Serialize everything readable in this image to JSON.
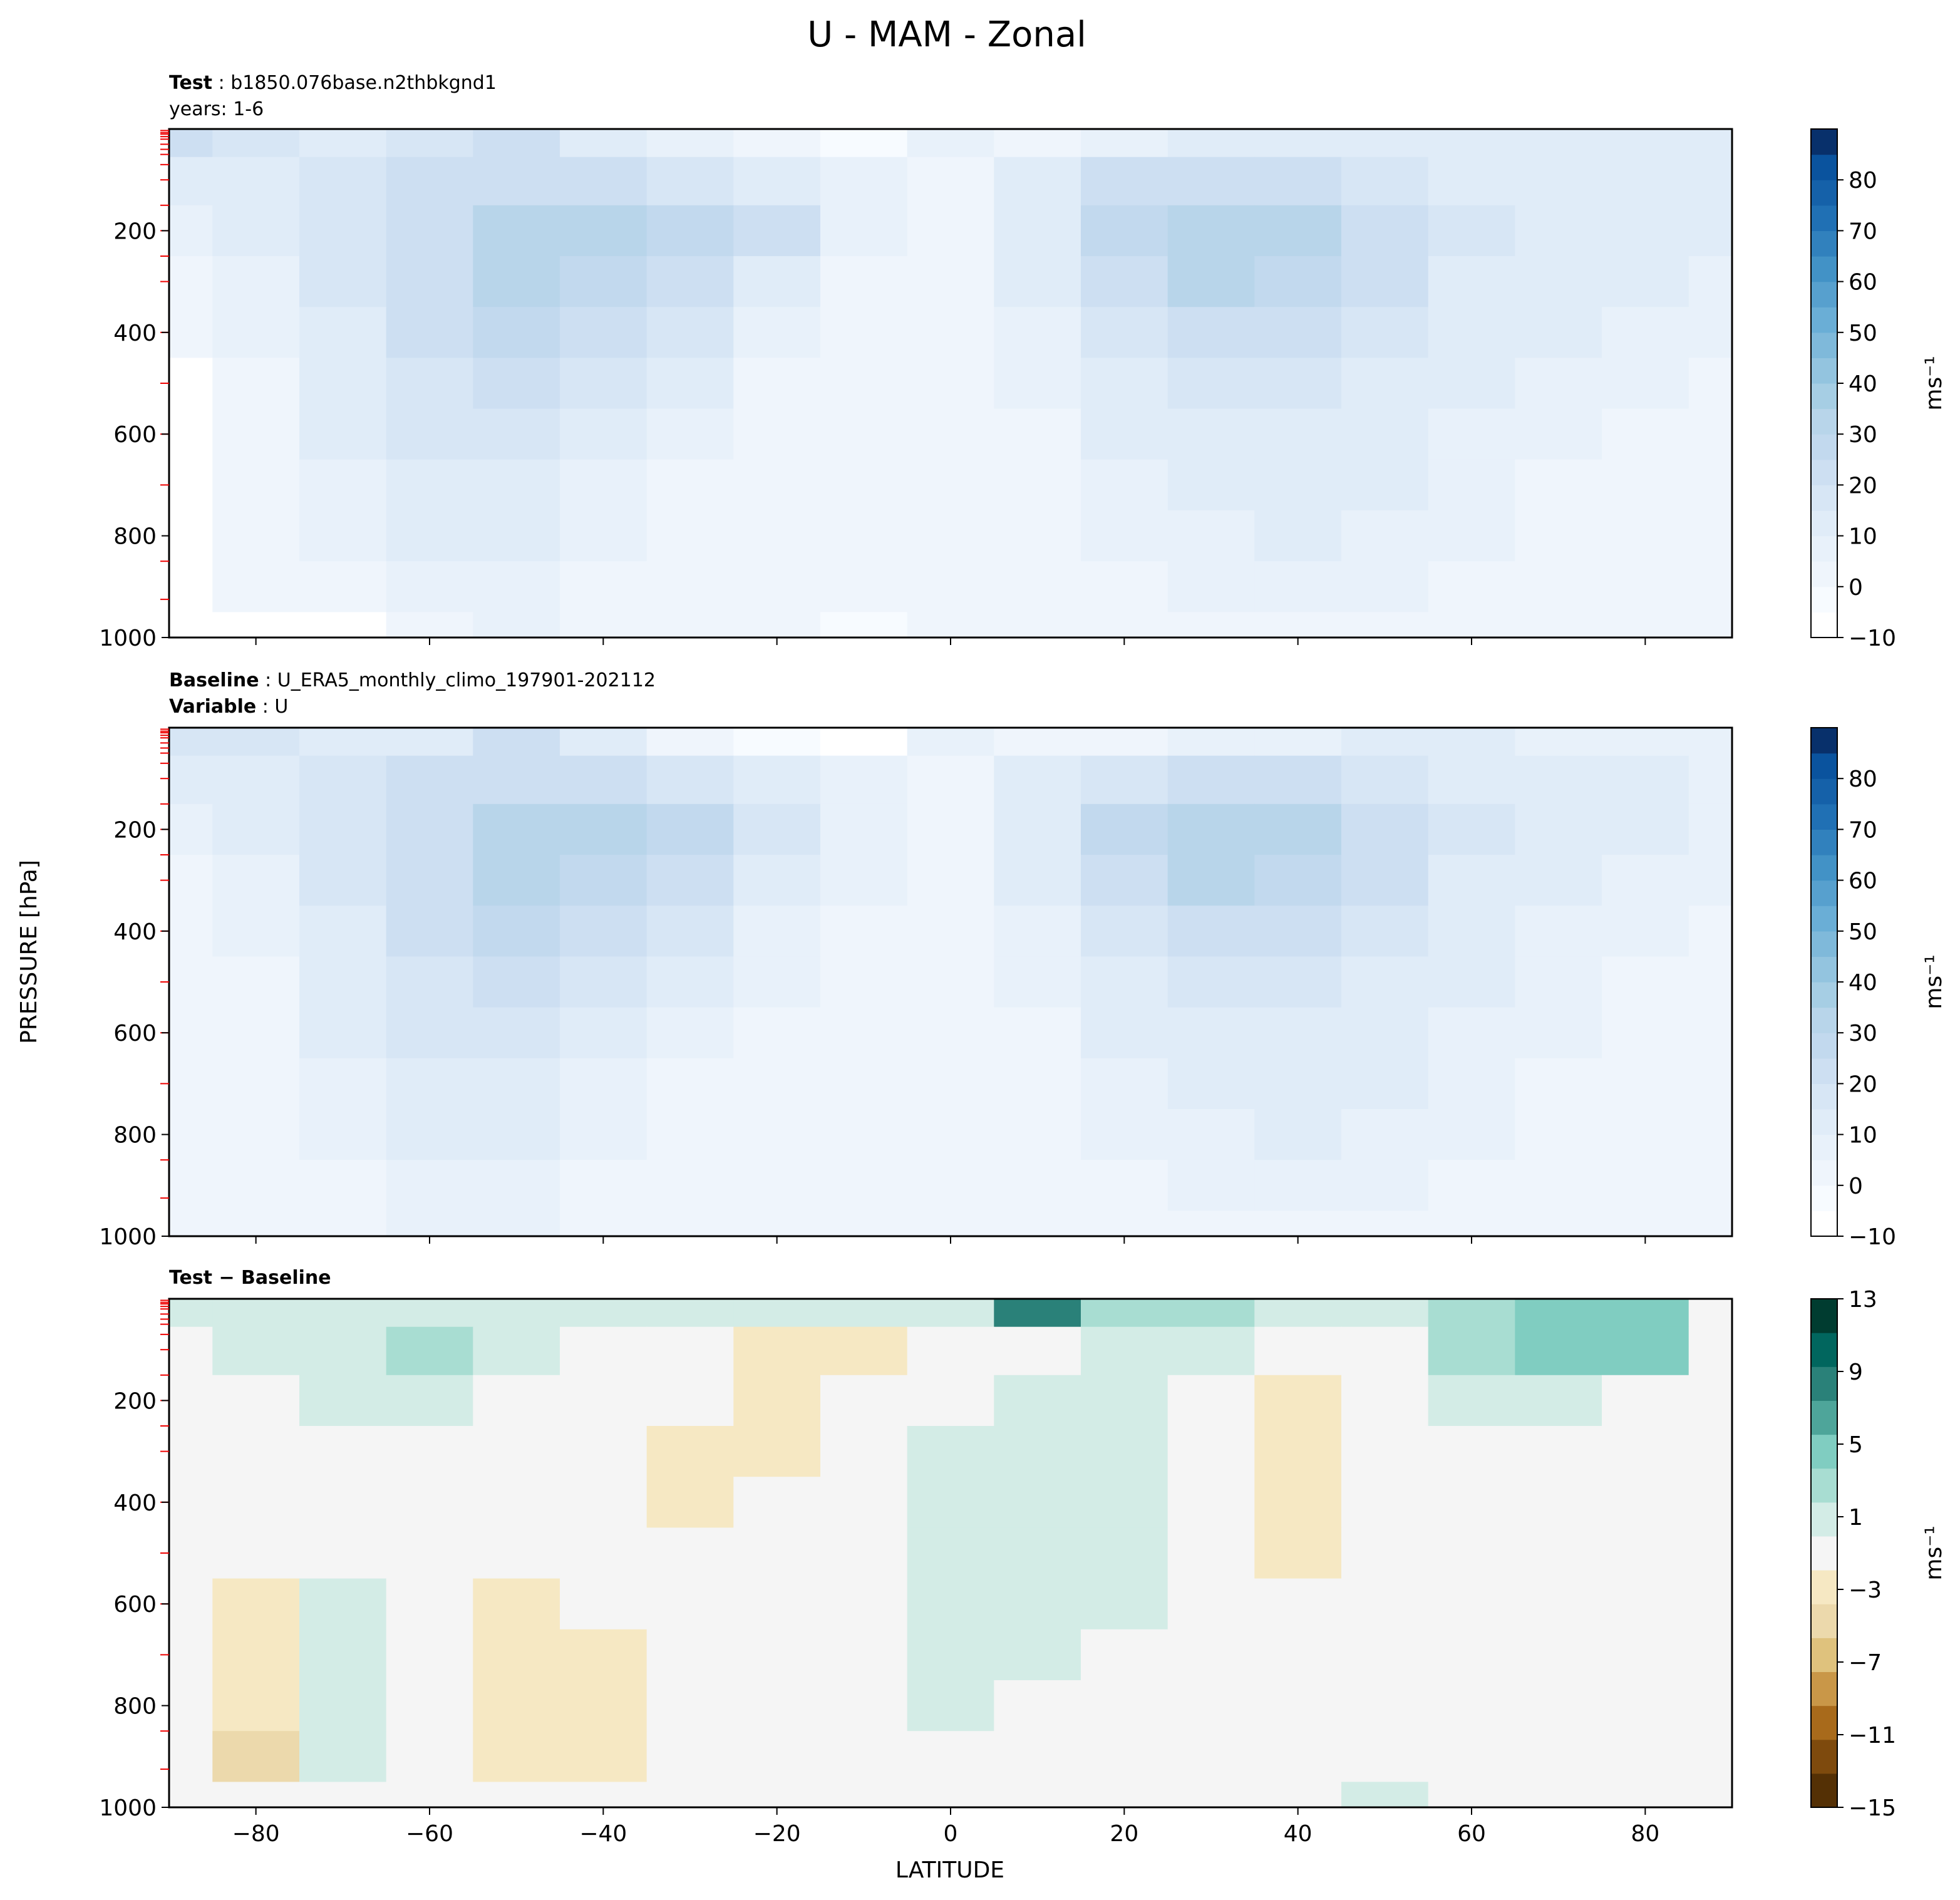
{
  "figure": {
    "title": "U - MAM - Zonal",
    "ylabel": "PRESSURE [hPa]",
    "xlabel": "LATITUDE"
  },
  "panels": [
    {
      "id": "test",
      "label_lines": [
        {
          "key": "Test",
          "value": "b1850.076base.n2thbkgnd1"
        },
        {
          "key": "",
          "value": "years: 1-6"
        }
      ],
      "colorbar": {
        "ticks": [
          "−10",
          "0",
          "10",
          "20",
          "30",
          "40",
          "50",
          "60",
          "70",
          "80"
        ],
        "unit": "ms⁻¹"
      }
    },
    {
      "id": "baseline",
      "label_lines": [
        {
          "key": "Baseline",
          "value": "U_ERA5_monthly_climo_197901-202112"
        },
        {
          "key": "Variable",
          "value": "U"
        }
      ],
      "colorbar": {
        "ticks": [
          "−10",
          "0",
          "10",
          "20",
          "30",
          "40",
          "50",
          "60",
          "70",
          "80"
        ],
        "unit": "ms⁻¹"
      }
    },
    {
      "id": "diff",
      "label_lines": [
        {
          "key": "Test − Baseline",
          "value": ""
        }
      ],
      "colorbar": {
        "ticks": [
          "−15",
          "−11",
          "−7",
          "−3",
          "1",
          "5",
          "9",
          "13"
        ],
        "unit": "ms⁻¹"
      }
    }
  ],
  "chart_data": [
    {
      "type": "heatmap",
      "title": "Test",
      "x": [
        -90,
        -80,
        -70,
        -60,
        -50,
        -40,
        -30,
        -20,
        -10,
        0,
        10,
        20,
        30,
        40,
        50,
        60,
        70,
        80,
        90
      ],
      "y": [
        10,
        100,
        200,
        300,
        400,
        500,
        600,
        700,
        800,
        900,
        1000
      ],
      "xlabel": "LATITUDE",
      "ylabel": "PRESSURE [hPa]",
      "xlim": [
        -90,
        90
      ],
      "ylim": [
        1000,
        0
      ],
      "xticks": [
        -80,
        -60,
        -40,
        -20,
        0,
        20,
        40,
        60,
        80
      ],
      "yticks": [
        200,
        400,
        600,
        800,
        1000
      ],
      "levels": [
        -10,
        -5,
        0,
        5,
        10,
        15,
        20,
        25,
        30,
        35,
        40,
        45,
        50,
        55,
        60,
        65,
        70,
        75,
        80,
        85
      ],
      "z": [
        [
          20,
          18,
          14,
          16,
          20,
          12,
          6,
          0,
          -4,
          6,
          4,
          6,
          10,
          10,
          12,
          14,
          14,
          14,
          12
        ],
        [
          12,
          14,
          16,
          20,
          24,
          20,
          18,
          14,
          6,
          2,
          10,
          20,
          22,
          20,
          16,
          14,
          14,
          14,
          12
        ],
        [
          8,
          10,
          16,
          24,
          30,
          30,
          28,
          20,
          8,
          2,
          12,
          28,
          34,
          30,
          22,
          16,
          14,
          12,
          10
        ],
        [
          4,
          8,
          16,
          24,
          30,
          28,
          22,
          14,
          4,
          0,
          10,
          24,
          30,
          26,
          20,
          14,
          12,
          10,
          8
        ],
        [
          2,
          6,
          14,
          22,
          26,
          22,
          16,
          8,
          2,
          0,
          8,
          18,
          24,
          22,
          18,
          12,
          10,
          8,
          6
        ],
        [
          -10,
          4,
          12,
          18,
          20,
          16,
          10,
          4,
          0,
          0,
          6,
          14,
          18,
          18,
          14,
          10,
          8,
          6,
          4
        ],
        [
          -10,
          4,
          10,
          16,
          16,
          12,
          6,
          2,
          0,
          0,
          4,
          10,
          14,
          14,
          12,
          8,
          6,
          4,
          4
        ],
        [
          -10,
          2,
          8,
          14,
          14,
          8,
          4,
          2,
          0,
          0,
          2,
          8,
          12,
          12,
          10,
          6,
          4,
          4,
          2
        ],
        [
          -10,
          2,
          6,
          10,
          10,
          6,
          2,
          2,
          0,
          0,
          2,
          6,
          8,
          10,
          8,
          6,
          4,
          2,
          2
        ],
        [
          -10,
          0,
          4,
          8,
          8,
          4,
          2,
          0,
          0,
          0,
          2,
          4,
          6,
          6,
          6,
          4,
          2,
          2,
          0
        ],
        [
          -10,
          -10,
          -10,
          4,
          6,
          2,
          0,
          0,
          -2,
          0,
          0,
          2,
          4,
          4,
          4,
          2,
          2,
          0,
          0
        ]
      ]
    },
    {
      "type": "heatmap",
      "title": "Baseline",
      "x": [
        -90,
        -80,
        -70,
        -60,
        -50,
        -40,
        -30,
        -20,
        -10,
        0,
        10,
        20,
        30,
        40,
        50,
        60,
        70,
        80,
        90
      ],
      "y": [
        10,
        100,
        200,
        300,
        400,
        500,
        600,
        700,
        800,
        900,
        1000
      ],
      "xlabel": "LATITUDE",
      "ylabel": "PRESSURE [hPa]",
      "xlim": [
        -90,
        90
      ],
      "ylim": [
        1000,
        0
      ],
      "xticks": [
        -80,
        -60,
        -40,
        -20,
        0,
        20,
        40,
        60,
        80
      ],
      "yticks": [
        200,
        400,
        600,
        800,
        1000
      ],
      "levels": [
        -10,
        -5,
        0,
        5,
        10,
        15,
        20,
        25,
        30,
        35,
        40,
        45,
        50,
        55,
        60,
        65,
        70,
        75,
        80,
        85
      ],
      "z": [
        [
          18,
          16,
          14,
          14,
          20,
          10,
          4,
          -2,
          -6,
          6,
          2,
          4,
          6,
          8,
          10,
          10,
          8,
          8,
          8
        ],
        [
          12,
          14,
          16,
          20,
          22,
          20,
          16,
          12,
          6,
          4,
          10,
          18,
          22,
          20,
          16,
          12,
          10,
          10,
          8
        ],
        [
          8,
          10,
          16,
          24,
          30,
          30,
          26,
          18,
          8,
          4,
          12,
          28,
          34,
          30,
          22,
          16,
          12,
          10,
          8
        ],
        [
          4,
          8,
          16,
          24,
          30,
          28,
          22,
          14,
          6,
          2,
          10,
          24,
          30,
          26,
          20,
          14,
          10,
          8,
          6
        ],
        [
          2,
          6,
          14,
          22,
          26,
          22,
          16,
          8,
          4,
          2,
          8,
          18,
          24,
          22,
          18,
          12,
          8,
          6,
          4
        ],
        [
          2,
          4,
          12,
          18,
          20,
          16,
          10,
          6,
          2,
          0,
          6,
          14,
          18,
          18,
          14,
          10,
          6,
          4,
          4
        ],
        [
          2,
          4,
          10,
          16,
          16,
          12,
          6,
          4,
          2,
          0,
          4,
          10,
          14,
          14,
          12,
          8,
          6,
          4,
          2
        ],
        [
          0,
          2,
          8,
          14,
          14,
          8,
          4,
          2,
          0,
          0,
          2,
          8,
          12,
          12,
          10,
          6,
          4,
          2,
          2
        ],
        [
          0,
          2,
          6,
          10,
          10,
          6,
          2,
          2,
          0,
          0,
          2,
          6,
          8,
          10,
          8,
          6,
          4,
          2,
          2
        ],
        [
          0,
          0,
          4,
          8,
          8,
          4,
          2,
          0,
          0,
          0,
          2,
          4,
          6,
          6,
          6,
          4,
          2,
          2,
          0
        ],
        [
          0,
          0,
          2,
          6,
          6,
          2,
          0,
          0,
          0,
          0,
          0,
          2,
          4,
          4,
          4,
          2,
          2,
          0,
          0
        ]
      ]
    },
    {
      "type": "heatmap",
      "title": "Test − Baseline",
      "x": [
        -90,
        -80,
        -70,
        -60,
        -50,
        -40,
        -30,
        -20,
        -10,
        0,
        10,
        20,
        30,
        40,
        50,
        60,
        70,
        80,
        90
      ],
      "y": [
        10,
        100,
        200,
        300,
        400,
        500,
        600,
        700,
        800,
        900,
        1000
      ],
      "xlabel": "LATITUDE",
      "ylabel": "PRESSURE [hPa]",
      "xlim": [
        -90,
        90
      ],
      "ylim": [
        1000,
        0
      ],
      "xticks": [
        -80,
        -60,
        -40,
        -20,
        0,
        20,
        40,
        60,
        80
      ],
      "yticks": [
        200,
        400,
        600,
        800,
        1000
      ],
      "levels": [
        -15,
        -13,
        -11,
        -9,
        -7,
        -5,
        -3,
        -1,
        1,
        3,
        5,
        7,
        9,
        11,
        13
      ],
      "z": [
        [
          2,
          2,
          2,
          2,
          2,
          2,
          2,
          2,
          2,
          2,
          9,
          4,
          4,
          2,
          2,
          4,
          6,
          6,
          0
        ],
        [
          0,
          2,
          2,
          3,
          2,
          0,
          -1,
          -3,
          -2,
          0,
          0,
          2,
          2,
          0,
          0,
          4,
          6,
          6,
          0
        ],
        [
          0,
          0,
          2,
          2,
          0,
          0,
          -1,
          -3,
          -1,
          0,
          2,
          2,
          0,
          -2,
          0,
          2,
          2,
          0,
          0
        ],
        [
          0,
          0,
          0,
          0,
          0,
          0,
          -2,
          -2,
          0,
          2,
          2,
          2,
          0,
          -2,
          0,
          0,
          0,
          0,
          0
        ],
        [
          0,
          0,
          0,
          0,
          0,
          0,
          -2,
          0,
          0,
          2,
          2,
          2,
          0,
          -2,
          0,
          0,
          0,
          0,
          0
        ],
        [
          0,
          0,
          0,
          0,
          0,
          0,
          0,
          0,
          0,
          2,
          2,
          2,
          0,
          -2,
          0,
          0,
          0,
          0,
          0
        ],
        [
          0,
          -2,
          2,
          0,
          -2,
          0,
          0,
          0,
          0,
          2,
          2,
          2,
          0,
          0,
          0,
          0,
          0,
          0,
          0
        ],
        [
          0,
          -2,
          2,
          0,
          -2,
          -2,
          0,
          0,
          0,
          2,
          2,
          0,
          0,
          0,
          0,
          0,
          0,
          0,
          0
        ],
        [
          0,
          -3,
          2,
          0,
          -2,
          -2,
          0,
          0,
          0,
          2,
          0,
          0,
          0,
          0,
          0,
          0,
          0,
          0,
          0
        ],
        [
          0,
          -4,
          2,
          0,
          -2,
          -2,
          0,
          0,
          0,
          0,
          0,
          0,
          0,
          0,
          0,
          0,
          0,
          0,
          0
        ],
        [
          0,
          0,
          0,
          0,
          0,
          0,
          0,
          0,
          0,
          0,
          0,
          0,
          0,
          0,
          2,
          0,
          0,
          0,
          0
        ]
      ]
    }
  ],
  "colors": {
    "blues": [
      "#ffffff",
      "#f7fbff",
      "#eff5fc",
      "#e8f1fa",
      "#e0ecf8",
      "#d7e6f5",
      "#cddff2",
      "#c2d9ee",
      "#b8d5ea",
      "#a6cee4",
      "#93c4df",
      "#7fb9da",
      "#6aaed6",
      "#57a0ce",
      "#4292c6",
      "#3181bd",
      "#2070b4",
      "#1561a9",
      "#0a539e",
      "#08306b"
    ],
    "diff": [
      "#543005",
      "#7e4a0d",
      "#a86a1b",
      "#c99748",
      "#dfc27d",
      "#ecd9ac",
      "#f6e8c3",
      "#f5f5f5",
      "#d3ece6",
      "#a8ddd2",
      "#80cdc1",
      "#4ea59a",
      "#2a8179",
      "#01665e",
      "#003c30"
    ]
  }
}
